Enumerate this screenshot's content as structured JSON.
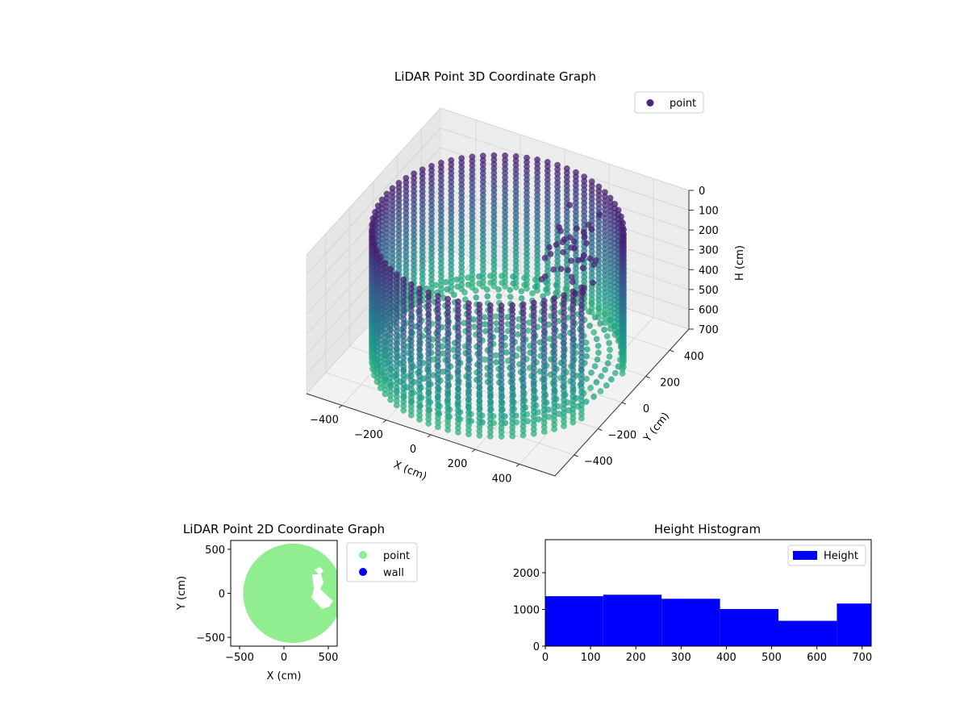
{
  "chart_data": [
    {
      "type": "scatter",
      "subtype": "3d",
      "title": "LiDAR Point 3D Coordinate Graph",
      "xlabel": "X (cm)",
      "ylabel": "Y (cm)",
      "zlabel": "H (cm)",
      "xlim": [
        -560,
        560
      ],
      "ylim": [
        -560,
        560
      ],
      "zlim": [
        0,
        720
      ],
      "zaxis_inverted": true,
      "xticks": [
        -400,
        -200,
        0,
        200,
        400
      ],
      "yticks": [
        -400,
        -200,
        0,
        200,
        400
      ],
      "zticks": [
        0,
        100,
        200,
        300,
        400,
        500,
        600,
        700
      ],
      "xtick_labels": [
        "−400",
        "−200",
        "0",
        "200",
        "400"
      ],
      "ytick_labels": [
        "−400",
        "−200",
        "0",
        "200",
        "400"
      ],
      "ztick_labels": [
        "0",
        "100",
        "200",
        "300",
        "400",
        "500",
        "600",
        "700"
      ],
      "colormap": "viridis",
      "cylinder_radius": 500,
      "wall_gap_angles_deg": [
        [
          345,
          360
        ],
        [
          0,
          20
        ]
      ],
      "series": [
        {
          "name": "point",
          "color": "#482878"
        }
      ],
      "legend_position": "upper right",
      "grid": true
    },
    {
      "type": "scatter",
      "title": "LiDAR Point 2D Coordinate Graph",
      "xlabel": "X (cm)",
      "ylabel": "Y (cm)",
      "xlim": [
        -600,
        600
      ],
      "ylim": [
        -600,
        600
      ],
      "xticks": [
        -500,
        0,
        500
      ],
      "yticks": [
        -500,
        0,
        500
      ],
      "xtick_labels": [
        "−500",
        "0",
        "500"
      ],
      "ytick_labels": [
        "−500",
        "0",
        "500"
      ],
      "disk": {
        "center": [
          100,
          0
        ],
        "radius": 560
      },
      "series": [
        {
          "name": "point",
          "color": "#90ee90"
        },
        {
          "name": "wall",
          "color": "#0000ff"
        }
      ],
      "legend_position": "outside right",
      "grid": false
    },
    {
      "type": "bar",
      "subtype": "histogram",
      "title": "Height Histogram",
      "xlim": [
        0,
        720
      ],
      "ylim": [
        0,
        2900
      ],
      "xticks": [
        0,
        100,
        200,
        300,
        400,
        500,
        600,
        700
      ],
      "yticks": [
        0,
        1000,
        2000
      ],
      "bin_edges": [
        0,
        128,
        257,
        386,
        515,
        644,
        720
      ],
      "counts": [
        1360,
        1400,
        1290,
        1010,
        690,
        1160
      ],
      "series": [
        {
          "name": "Height",
          "color": "#0000ff"
        }
      ],
      "legend_position": "upper right",
      "grid": false
    }
  ]
}
